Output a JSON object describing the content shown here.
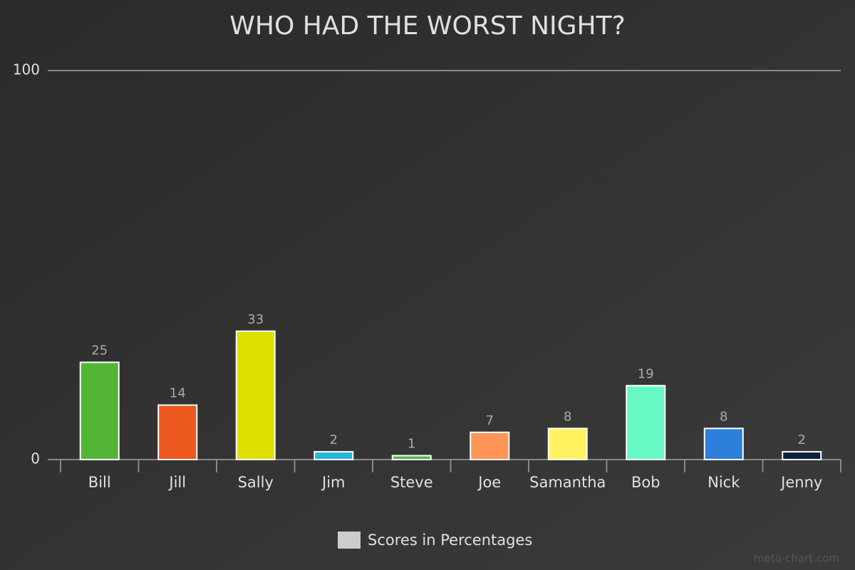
{
  "chart_data": {
    "type": "bar",
    "title": "WHO HAD THE WORST NIGHT?",
    "categories": [
      "Bill",
      "Jill",
      "Sally",
      "Jim",
      "Steve",
      "Joe",
      "Samantha",
      "Bob",
      "Nick",
      "Jenny"
    ],
    "series": [
      {
        "name": "Scores in Percentages",
        "color": "#cccccc",
        "values": [
          25,
          14,
          33,
          2,
          1,
          7,
          8,
          19,
          8,
          2
        ],
        "colors": [
          "#52b536",
          "#ec581e",
          "#dde000",
          "#27b6d6",
          "#4fb848",
          "#ff9557",
          "#fff261",
          "#68f8c3",
          "#2c7fdb",
          "#0c2239"
        ]
      }
    ],
    "ylim": [
      0,
      100
    ],
    "yticks": [
      0,
      100
    ],
    "grid": true,
    "watermark": "meta-chart.com"
  }
}
